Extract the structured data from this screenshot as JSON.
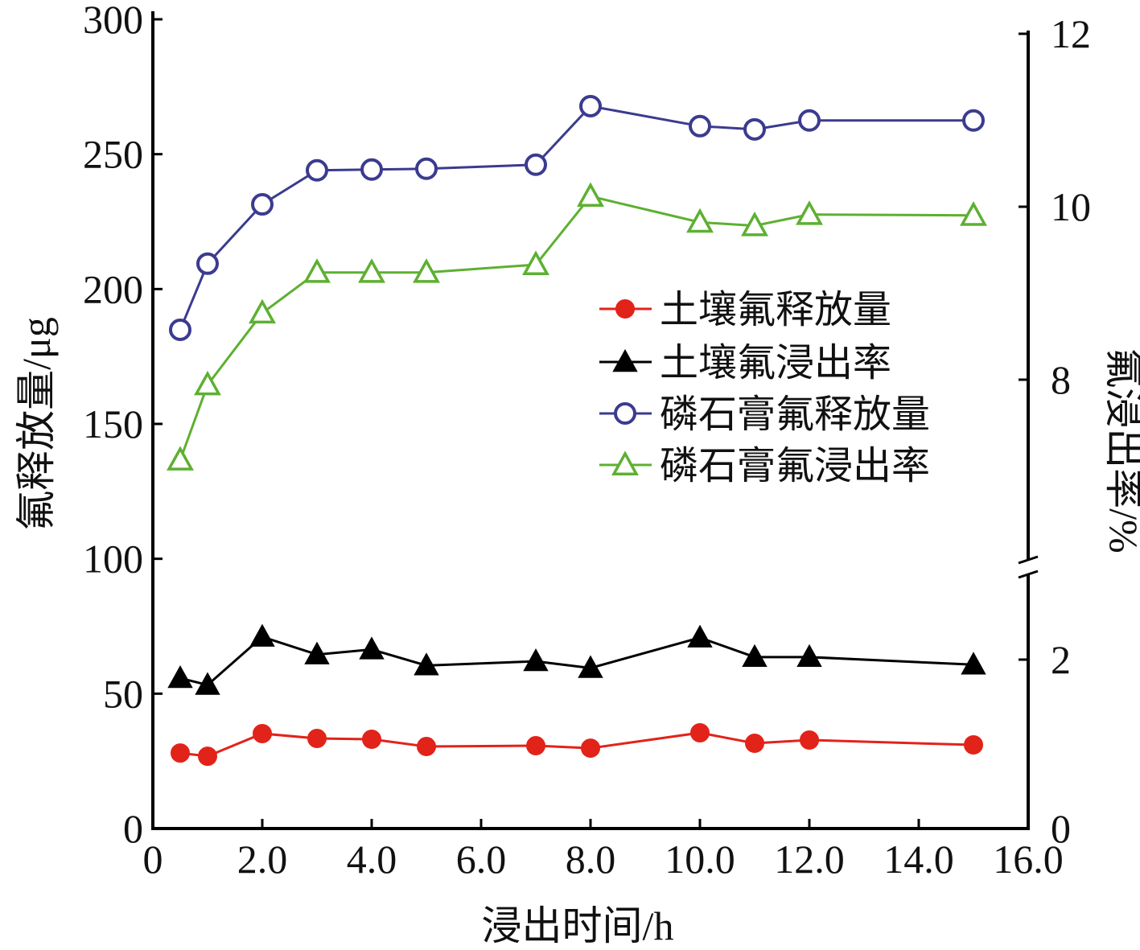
{
  "chart_data": {
    "type": "line",
    "title": "",
    "xlabel": "浸出时间/h",
    "ylabel": "氟释放量/μg",
    "y2label": "氟浸出率/%",
    "xlim": [
      0,
      16
    ],
    "ylim": [
      0,
      300
    ],
    "y2_segments": [
      [
        0,
        3
      ],
      [
        6.5,
        12
      ]
    ],
    "x_ticks": [
      "0",
      "2.0",
      "4.0",
      "6.0",
      "8.0",
      "10.0",
      "12.0",
      "14.0",
      "16.0"
    ],
    "y_ticks": [
      "0",
      "50",
      "100",
      "150",
      "200",
      "250",
      "300"
    ],
    "y2_ticks": [
      "0",
      "2",
      "8",
      "10",
      "12"
    ],
    "x": [
      0.5,
      1,
      2,
      3,
      4,
      5,
      7,
      8,
      10,
      11,
      12,
      15
    ],
    "legend_position": "center-right",
    "series": [
      {
        "name": "土壤氟释放量",
        "axis": "left",
        "marker": "filled-circle",
        "color": "#e2231a",
        "values": [
          28.0,
          26.8,
          35.2,
          33.4,
          33.1,
          30.4,
          30.7,
          29.8,
          35.5,
          31.6,
          32.8,
          31.0
        ]
      },
      {
        "name": "土壤氟浸出率",
        "axis": "right",
        "marker": "filled-triangle",
        "color": "#000000",
        "values": [
          1.78,
          1.7,
          2.27,
          2.06,
          2.12,
          1.93,
          1.98,
          1.9,
          2.26,
          2.03,
          2.03,
          1.94
        ]
      },
      {
        "name": "磷石膏氟释放量",
        "axis": "left",
        "marker": "open-circle",
        "color": "#3b3b8f",
        "values": [
          184.9,
          209.4,
          231.4,
          244.0,
          244.3,
          244.6,
          246.1,
          267.8,
          260.4,
          259.2,
          262.5,
          262.5
        ]
      },
      {
        "name": "磷石膏氟浸出率",
        "axis": "right",
        "marker": "open-triangle",
        "color": "#5db031",
        "values": [
          7.07,
          7.94,
          8.77,
          9.24,
          9.24,
          9.24,
          9.33,
          10.12,
          9.82,
          9.78,
          9.91,
          9.9
        ]
      }
    ]
  }
}
